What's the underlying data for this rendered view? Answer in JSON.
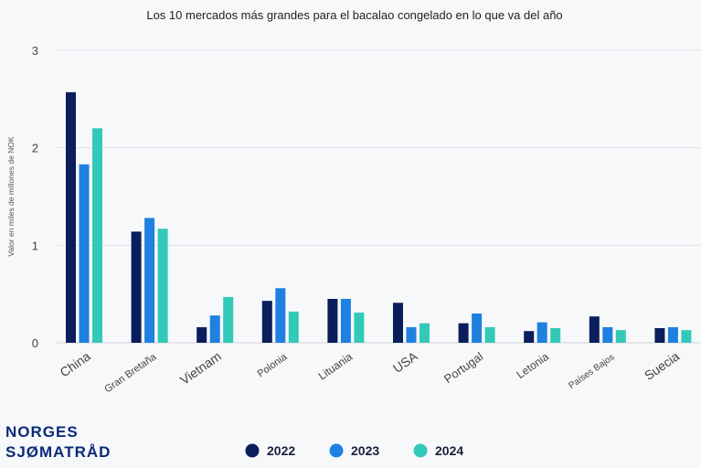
{
  "chart_data": {
    "type": "bar",
    "title": "Los 10 mercados más grandes para el bacalao congelado en lo que va del año",
    "ylabel": "Valor en miles de millones de NOK",
    "xlabel": "",
    "ylim": [
      0,
      3
    ],
    "yticks": [
      0,
      1,
      2,
      3
    ],
    "grid": true,
    "legend_position": "bottom",
    "categories": [
      "China",
      "Gran Bretaña",
      "Vietnam",
      "Polonia",
      "Lituania",
      "USA",
      "Portugal",
      "Letonia",
      "Países Bajos",
      "Suecia"
    ],
    "series": [
      {
        "name": "2022",
        "color": "#0a1e5c",
        "values": [
          2.57,
          1.14,
          0.16,
          0.43,
          0.45,
          0.41,
          0.2,
          0.12,
          0.27,
          0.15
        ]
      },
      {
        "name": "2023",
        "color": "#1f80e0",
        "values": [
          1.83,
          1.28,
          0.28,
          0.56,
          0.45,
          0.16,
          0.3,
          0.21,
          0.16,
          0.16
        ]
      },
      {
        "name": "2024",
        "color": "#33c9b8",
        "values": [
          2.2,
          1.17,
          0.47,
          0.32,
          0.31,
          0.2,
          0.16,
          0.15,
          0.13,
          0.13
        ]
      }
    ]
  },
  "logo": {
    "line1": "NORGES",
    "line2": "SJØMATRÅD"
  },
  "colors": {
    "logo": "#0a2a7a",
    "grid": "#dfe2e8",
    "axis": "#cfd3da"
  }
}
